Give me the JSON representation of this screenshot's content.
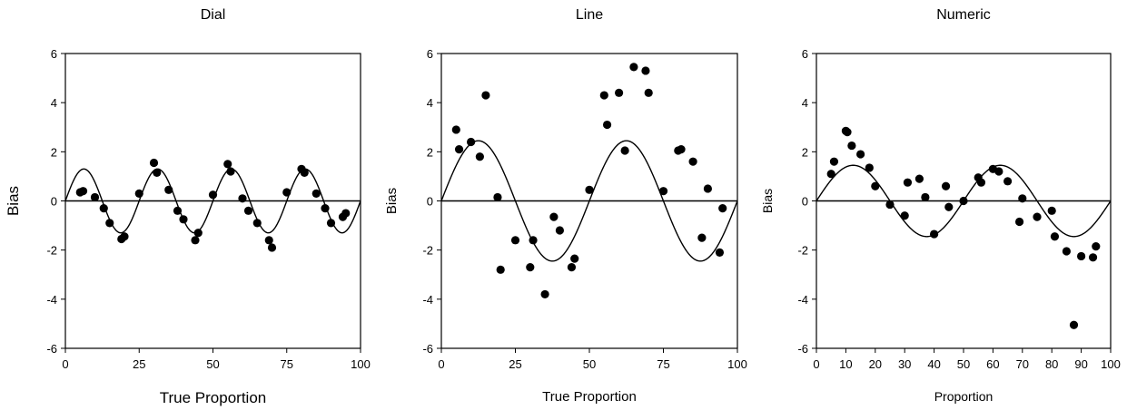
{
  "chart_data": [
    {
      "type": "scatter",
      "title": "Dial",
      "xlabel": "True Proportion",
      "ylabel": "Bias",
      "xlim": [
        0,
        100
      ],
      "ylim": [
        -6,
        6
      ],
      "xticks": [
        "0",
        "25",
        "50",
        "75",
        "100"
      ],
      "yticks": [
        "-6",
        "-4",
        "-2",
        "0",
        "2",
        "4",
        "6"
      ],
      "reference_line_y": 0,
      "points": [
        [
          5,
          0.35
        ],
        [
          6,
          0.4
        ],
        [
          10,
          0.15
        ],
        [
          13,
          -0.3
        ],
        [
          15,
          -0.9
        ],
        [
          19,
          -1.55
        ],
        [
          20,
          -1.45
        ],
        [
          25,
          0.3
        ],
        [
          30,
          1.55
        ],
        [
          31,
          1.15
        ],
        [
          35,
          0.45
        ],
        [
          38,
          -0.4
        ],
        [
          40,
          -0.75
        ],
        [
          44,
          -1.6
        ],
        [
          45,
          -1.3
        ],
        [
          50,
          0.25
        ],
        [
          55,
          1.5
        ],
        [
          56,
          1.2
        ],
        [
          60,
          0.1
        ],
        [
          62,
          -0.4
        ],
        [
          65,
          -0.9
        ],
        [
          69,
          -1.6
        ],
        [
          70,
          -1.9
        ],
        [
          75,
          0.35
        ],
        [
          80,
          1.3
        ],
        [
          81,
          1.15
        ],
        [
          85,
          0.3
        ],
        [
          88,
          -0.3
        ],
        [
          90,
          -0.9
        ],
        [
          94,
          -0.65
        ],
        [
          95,
          -0.5
        ]
      ],
      "fit_curve": {
        "amplitude": 1.3,
        "period": 25,
        "phase": 0
      }
    },
    {
      "type": "scatter",
      "title": "Line",
      "xlabel": "True Proportion",
      "ylabel": "Bias",
      "xlim": [
        0,
        100
      ],
      "ylim": [
        -6,
        6
      ],
      "xticks": [
        "0",
        "25",
        "50",
        "75",
        "100"
      ],
      "yticks": [
        "-6",
        "-4",
        "-2",
        "0",
        "2",
        "4",
        "6"
      ],
      "reference_line_y": 0,
      "points": [
        [
          5,
          2.9
        ],
        [
          6,
          2.1
        ],
        [
          10,
          2.4
        ],
        [
          13,
          1.8
        ],
        [
          15,
          4.3
        ],
        [
          19,
          0.15
        ],
        [
          20,
          -2.8
        ],
        [
          25,
          -1.6
        ],
        [
          30,
          -2.7
        ],
        [
          31,
          -1.6
        ],
        [
          35,
          -3.8
        ],
        [
          38,
          -0.65
        ],
        [
          40,
          -1.2
        ],
        [
          44,
          -2.7
        ],
        [
          45,
          -2.35
        ],
        [
          50,
          0.45
        ],
        [
          55,
          4.3
        ],
        [
          56,
          3.1
        ],
        [
          60,
          4.4
        ],
        [
          62,
          2.05
        ],
        [
          65,
          5.45
        ],
        [
          69,
          5.3
        ],
        [
          70,
          4.4
        ],
        [
          75,
          0.4
        ],
        [
          80,
          2.05
        ],
        [
          81,
          2.1
        ],
        [
          85,
          1.6
        ],
        [
          88,
          -1.5
        ],
        [
          90,
          0.5
        ],
        [
          94,
          -2.1
        ],
        [
          95,
          -0.3
        ]
      ],
      "fit_curve": {
        "amplitude": 2.45,
        "period": 50,
        "phase": 0
      }
    },
    {
      "type": "scatter",
      "title": "Numeric",
      "xlabel": "Proportion",
      "ylabel": "Bias",
      "xlim": [
        0,
        100
      ],
      "ylim": [
        -6,
        6
      ],
      "xticks": [
        "0",
        "10",
        "20",
        "30",
        "40",
        "50",
        "60",
        "70",
        "80",
        "90",
        "100"
      ],
      "yticks": [
        "-6",
        "-4",
        "-2",
        "0",
        "2",
        "4",
        "6"
      ],
      "reference_line_y": 0,
      "points": [
        [
          5,
          1.1
        ],
        [
          6,
          1.6
        ],
        [
          10,
          2.85
        ],
        [
          10.5,
          2.8
        ],
        [
          12,
          2.25
        ],
        [
          15,
          1.9
        ],
        [
          18,
          1.35
        ],
        [
          20,
          0.6
        ],
        [
          25,
          -0.15
        ],
        [
          30,
          -0.6
        ],
        [
          31,
          0.75
        ],
        [
          35,
          0.9
        ],
        [
          37,
          0.15
        ],
        [
          40,
          -1.35
        ],
        [
          44,
          0.6
        ],
        [
          45,
          -0.25
        ],
        [
          50,
          0.0
        ],
        [
          55,
          0.95
        ],
        [
          56,
          0.75
        ],
        [
          60,
          1.3
        ],
        [
          62,
          1.2
        ],
        [
          65,
          0.8
        ],
        [
          69,
          -0.85
        ],
        [
          70,
          0.1
        ],
        [
          75,
          -0.65
        ],
        [
          80,
          -0.4
        ],
        [
          81,
          -1.45
        ],
        [
          85,
          -2.05
        ],
        [
          87.5,
          -5.05
        ],
        [
          90,
          -2.25
        ],
        [
          94,
          -2.3
        ],
        [
          95,
          -1.85
        ]
      ],
      "fit_curve": {
        "amplitude": 1.45,
        "period": 50,
        "phase": 0
      }
    }
  ]
}
